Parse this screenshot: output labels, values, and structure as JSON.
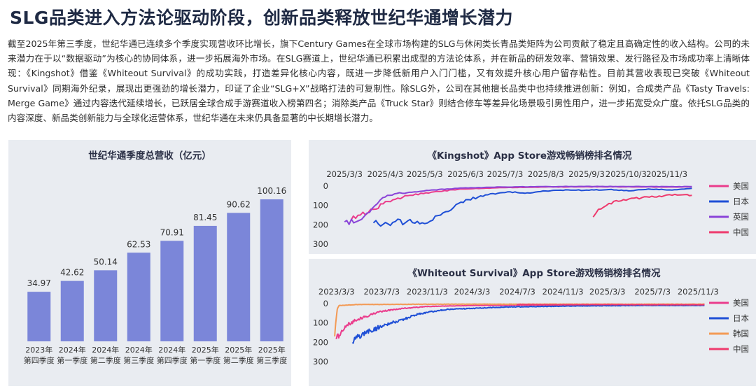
{
  "header": {
    "title": "SLG品类进入方法论驱动阶段，创新品类释放世纪华通增长潜力",
    "paragraph": "截至2025年第三季度，世纪华通已连续多个季度实现营收环比增长，旗下Century Games在全球市场构建的SLG与休闲类长青品类矩阵为公司贡献了稳定且高确定性的收入结构。公司的未来潜力在于以“数据驱动”为核心的协同体系，进一步拓展海外市场。在SLG赛道上，世纪华通已积累出成型的方法论体系，并在新品的研发效率、营销效果、发行路径及市场成功率上清晰体现：《Kingshot》借鉴《Whiteout Survival》的成功实践，打造差异化核心内容，既进一步降低新用户入门门槛，又有效提升核心用户留存粘性。目前其营收表现已突破《Whiteout Survival》同期海外纪录，展现出更强劲的增长潜力，印证了企业“SLG+X”战略打法的可复制性。除SLG外，公司在其他擅长品类中也持续推进创新：例如，合成类产品《Tasty Travels: Merge Game》通过内容迭代延续增长，已跃居全球合成手游赛道收入榜第四名；消除类产品《Truck Star》则结合修车等差异化场景吸引男性用户，进一步拓宽受众广度。依托SLG品类的内容深度、新品类创新能力与全球化运营体系，世纪华通在未来仍具备显著的中长期增长潜力。"
  },
  "chart_data": [
    {
      "type": "bar",
      "title": "世纪华通季度总营收（亿元）",
      "categories": [
        [
          "2023年",
          "第四季度"
        ],
        [
          "2024年",
          "第一季度"
        ],
        [
          "2024年",
          "第二季度"
        ],
        [
          "2024年",
          "第三季度"
        ],
        [
          "2024年",
          "第四季度"
        ],
        [
          "2025年",
          "第一季度"
        ],
        [
          "2025年",
          "第二季度"
        ],
        [
          "2025年",
          "第三季度"
        ]
      ],
      "values": [
        34.97,
        42.62,
        50.14,
        62.53,
        70.91,
        81.45,
        90.62,
        100.16
      ],
      "value_labels": [
        "34.97",
        "42.62",
        "50.14",
        "62.53",
        "70.91",
        "81.45",
        "90.62",
        "100.16"
      ],
      "ylim": [
        0,
        110
      ],
      "grid": false,
      "bar_color": "#7b86d9"
    },
    {
      "type": "line",
      "title": "《Kingshot》App Store游戏畅销榜排名情况",
      "x_ticks": [
        "2025/3/3",
        "2025/4/3",
        "2025/5/3",
        "2025/6/3",
        "2025/7/3",
        "2025/8/3",
        "2025/9/3",
        "2025/10/3",
        "2025/11/3"
      ],
      "x_range": [
        "2025/2/24",
        "2025/11/25"
      ],
      "y_ticks": [
        "0",
        "100",
        "200",
        "300"
      ],
      "ylim": [
        300,
        0
      ],
      "legend_position": "right",
      "series": [
        {
          "name": "美国",
          "color": "#ea3c8c",
          "points": [
            [
              "2025/3/8",
              175
            ],
            [
              "2025/3/15",
              150
            ],
            [
              "2025/3/25",
              120
            ],
            [
              "2025/4/5",
              80
            ],
            [
              "2025/4/20",
              50
            ],
            [
              "2025/5/10",
              30
            ],
            [
              "2025/6/1",
              15
            ],
            [
              "2025/7/1",
              8
            ],
            [
              "2025/8/1",
              5
            ],
            [
              "2025/9/1",
              4
            ],
            [
              "2025/10/1",
              4
            ],
            [
              "2025/11/1",
              5
            ],
            [
              "2025/11/22",
              4
            ]
          ]
        },
        {
          "name": "日本",
          "color": "#1f4fd6",
          "points": [
            [
              "2025/3/25",
              190
            ],
            [
              "2025/4/5",
              195
            ],
            [
              "2025/4/20",
              180
            ],
            [
              "2025/5/1",
              190
            ],
            [
              "2025/5/15",
              150
            ],
            [
              "2025/5/25",
              110
            ],
            [
              "2025/6/5",
              70
            ],
            [
              "2025/6/20",
              45
            ],
            [
              "2025/7/5",
              30
            ],
            [
              "2025/7/20",
              35
            ],
            [
              "2025/8/1",
              25
            ],
            [
              "2025/8/20",
              20
            ],
            [
              "2025/9/1",
              22
            ],
            [
              "2025/9/20",
              18
            ],
            [
              "2025/10/5",
              25
            ],
            [
              "2025/10/20",
              15
            ],
            [
              "2025/11/5",
              20
            ],
            [
              "2025/11/22",
              12
            ]
          ]
        },
        {
          "name": "英国",
          "color": "#8a44d8",
          "points": [
            [
              "2025/3/3",
              185
            ],
            [
              "2025/3/10",
              190
            ],
            [
              "2025/3/20",
              140
            ],
            [
              "2025/4/1",
              60
            ],
            [
              "2025/4/10",
              40
            ],
            [
              "2025/4/25",
              30
            ],
            [
              "2025/5/10",
              20
            ],
            [
              "2025/6/1",
              10
            ],
            [
              "2025/7/1",
              5
            ],
            [
              "2025/8/1",
              3
            ],
            [
              "2025/9/1",
              2
            ],
            [
              "2025/10/1",
              2
            ],
            [
              "2025/11/1",
              3
            ],
            [
              "2025/11/22",
              3
            ]
          ]
        },
        {
          "name": "中国",
          "color": "#ee3a6d",
          "points": [
            [
              "2025/9/8",
              160
            ],
            [
              "2025/9/12",
              120
            ],
            [
              "2025/9/20",
              90
            ],
            [
              "2025/10/1",
              70
            ],
            [
              "2025/10/15",
              60
            ],
            [
              "2025/11/1",
              50
            ],
            [
              "2025/11/15",
              45
            ],
            [
              "2025/11/22",
              48
            ]
          ]
        }
      ]
    },
    {
      "type": "line",
      "title": "《Whiteout Survival》App Store游戏畅销榜排名情况",
      "x_ticks": [
        "2023/3/3",
        "2023/7/3",
        "2023/11/3",
        "2024/3/3",
        "2024/7/3",
        "2024/11/3",
        "2025/3/3",
        "2025/7/3",
        "2025/11/3"
      ],
      "x_range": [
        "2023/2/24",
        "2025/11/25"
      ],
      "y_ticks": [
        "0",
        "100",
        "200",
        "300"
      ],
      "ylim": [
        300,
        0
      ],
      "legend_position": "right",
      "series": [
        {
          "name": "美国",
          "color": "#ea3c8c",
          "points": [
            [
              "2023/3/1",
              180
            ],
            [
              "2023/3/15",
              150
            ],
            [
              "2023/4/1",
              110
            ],
            [
              "2023/5/1",
              80
            ],
            [
              "2023/6/1",
              60
            ],
            [
              "2023/7/1",
              40
            ],
            [
              "2023/9/1",
              25
            ],
            [
              "2023/11/1",
              15
            ],
            [
              "2024/3/1",
              10
            ],
            [
              "2024/7/1",
              8
            ],
            [
              "2025/1/1",
              6
            ],
            [
              "2025/11/20",
              5
            ]
          ]
        },
        {
          "name": "日本",
          "color": "#1f4fd6",
          "points": [
            [
              "2023/4/15",
              200
            ],
            [
              "2023/5/1",
              170
            ],
            [
              "2023/6/1",
              140
            ],
            [
              "2023/7/1",
              120
            ],
            [
              "2023/8/1",
              100
            ],
            [
              "2023/9/1",
              80
            ],
            [
              "2023/10/1",
              60
            ],
            [
              "2023/11/1",
              45
            ],
            [
              "2024/1/1",
              30
            ],
            [
              "2024/3/1",
              25
            ],
            [
              "2024/6/1",
              18
            ],
            [
              "2024/9/1",
              15
            ],
            [
              "2025/1/1",
              12
            ],
            [
              "2025/6/1",
              10
            ],
            [
              "2025/11/20",
              10
            ]
          ]
        },
        {
          "name": "韩国",
          "color": "#f39a55",
          "points": [
            [
              "2023/2/26",
              170
            ],
            [
              "2023/3/1",
              100
            ],
            [
              "2023/3/5",
              30
            ],
            [
              "2023/3/10",
              10
            ],
            [
              "2023/5/1",
              5
            ],
            [
              "2024/1/1",
              3
            ],
            [
              "2025/1/1",
              3
            ],
            [
              "2025/11/20",
              3
            ]
          ]
        },
        {
          "name": "中国",
          "color": "#ee3a6d",
          "points": [
            [
              "2024/7/1",
              5
            ],
            [
              "2024/11/1",
              6
            ],
            [
              "2025/3/1",
              5
            ],
            [
              "2025/7/1",
              6
            ],
            [
              "2025/11/20",
              6
            ]
          ]
        }
      ]
    }
  ]
}
